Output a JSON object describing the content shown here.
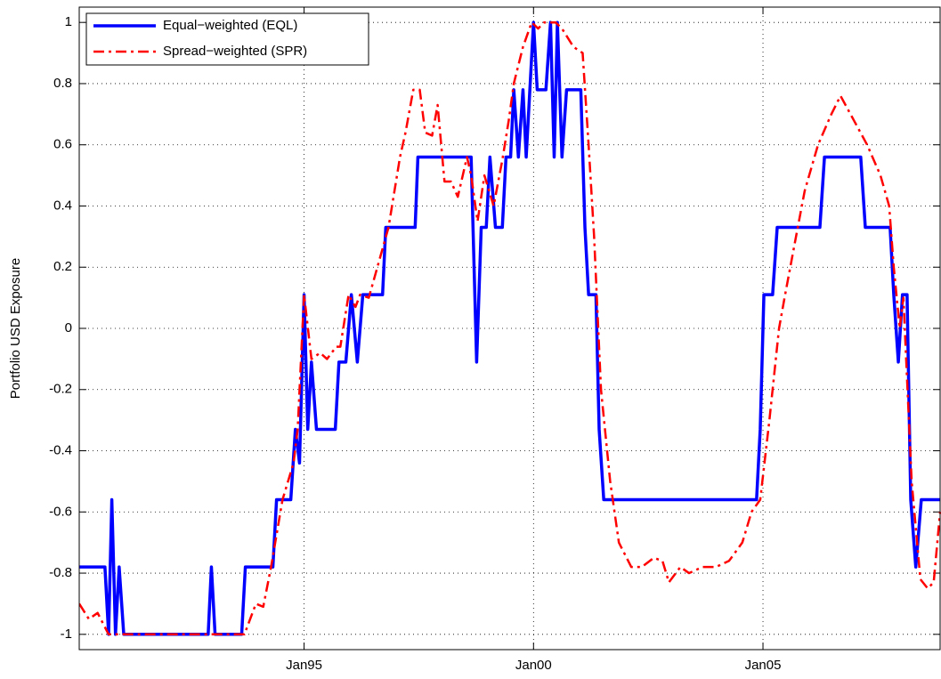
{
  "chart_data": {
    "type": "line",
    "y_label": "Portfolio USD Exposure",
    "xlim": [
      1990.1,
      2008.86
    ],
    "xticks": [
      {
        "value": 1995,
        "label": "Jan95"
      },
      {
        "value": 2000,
        "label": "Jan00"
      },
      {
        "value": 2005,
        "label": "Jan05"
      }
    ],
    "ylim": [
      -1.05,
      1.05
    ],
    "yticks": [
      -1,
      -0.8,
      -0.6,
      -0.4,
      -0.2,
      0,
      0.2,
      0.4,
      0.6,
      0.8,
      1
    ],
    "grid": true,
    "legend": "northwest",
    "series": [
      {
        "name": "Equal−weighted (EQL)",
        "color": "#0000ff",
        "style": "solid",
        "x": [
          1990.1,
          1990.66,
          1990.74,
          1990.81,
          1990.89,
          1990.97,
          1991.07,
          1992.91,
          1992.98,
          1993.06,
          1993.64,
          1993.72,
          1994.32,
          1994.4,
          1994.71,
          1994.81,
          1994.9,
          1995.0,
          1995.08,
          1995.16,
          1995.27,
          1995.68,
          1995.76,
          1995.91,
          1996.03,
          1996.16,
          1996.28,
          1996.71,
          1996.78,
          1997.42,
          1997.48,
          1998.64,
          1998.76,
          1998.86,
          1998.97,
          1999.05,
          1999.17,
          1999.32,
          1999.4,
          1999.5,
          1999.57,
          1999.67,
          1999.77,
          1999.84,
          2000.0,
          2000.08,
          2000.27,
          2000.37,
          2000.45,
          2000.52,
          2000.62,
          2000.72,
          2001.03,
          2001.12,
          2001.2,
          2001.36,
          2001.43,
          2001.53,
          2004.86,
          2004.94,
          2005.02,
          2005.21,
          2005.31,
          2006.24,
          2006.34,
          2007.13,
          2007.23,
          2007.77,
          2007.85,
          2007.95,
          2008.04,
          2008.14,
          2008.22,
          2008.33,
          2008.45,
          2008.86
        ],
        "values": [
          -0.78,
          -0.78,
          -1,
          -0.56,
          -1,
          -0.78,
          -1,
          -1,
          -0.78,
          -1,
          -1,
          -0.78,
          -0.78,
          -0.56,
          -0.56,
          -0.33,
          -0.44,
          0.11,
          -0.33,
          -0.11,
          -0.33,
          -0.33,
          -0.11,
          -0.11,
          0.11,
          -0.11,
          0.11,
          0.11,
          0.33,
          0.33,
          0.56,
          0.56,
          -0.11,
          0.33,
          0.33,
          0.56,
          0.33,
          0.33,
          0.56,
          0.56,
          0.78,
          0.56,
          0.78,
          0.56,
          1,
          0.78,
          0.78,
          1,
          0.56,
          1,
          0.56,
          0.78,
          0.78,
          0.33,
          0.11,
          0.11,
          -0.33,
          -0.56,
          -0.56,
          -0.33,
          0.11,
          0.11,
          0.33,
          0.33,
          0.56,
          0.56,
          0.33,
          0.33,
          0.11,
          -0.11,
          0.11,
          0.11,
          -0.56,
          -0.78,
          -0.56,
          -0.56
        ]
      },
      {
        "name": "Spread−weighted (SPR)",
        "color": "#ff0000",
        "style": "dashdot",
        "x": [
          1990.1,
          1990.31,
          1990.5,
          1990.74,
          1993.7,
          1993.95,
          1994.11,
          1994.28,
          1994.53,
          1994.77,
          1994.86,
          1995.0,
          1995.16,
          1995.35,
          1995.5,
          1995.7,
          1995.79,
          1995.97,
          1996.12,
          1996.22,
          1996.41,
          1996.84,
          1997.09,
          1997.21,
          1997.38,
          1997.52,
          1997.64,
          1997.79,
          1997.91,
          1998.06,
          1998.2,
          1998.35,
          1998.55,
          1998.64,
          1998.78,
          1998.93,
          1999.13,
          1999.32,
          1999.46,
          1999.57,
          1999.77,
          1999.96,
          2000.1,
          2000.23,
          2000.48,
          2000.62,
          2000.87,
          2001.07,
          2001.2,
          2001.32,
          2001.47,
          2001.67,
          2001.86,
          2002.13,
          2002.36,
          2002.62,
          2002.81,
          2002.95,
          2003.2,
          2003.39,
          2003.68,
          2003.97,
          2004.26,
          2004.55,
          2004.75,
          2004.94,
          2005.14,
          2005.35,
          2005.47,
          2005.72,
          2005.91,
          2006.2,
          2006.49,
          2006.69,
          2006.98,
          2007.27,
          2007.56,
          2007.75,
          2007.85,
          2007.98,
          2008.06,
          2008.24,
          2008.43,
          2008.59,
          2008.72,
          2008.86
        ],
        "values": [
          -0.9,
          -0.95,
          -0.93,
          -1,
          -1,
          -0.9,
          -0.91,
          -0.78,
          -0.56,
          -0.44,
          -0.33,
          0.11,
          -0.1,
          -0.08,
          -0.1,
          -0.06,
          -0.06,
          0.11,
          0.07,
          0.11,
          0.1,
          0.33,
          0.56,
          0.64,
          0.78,
          0.78,
          0.64,
          0.63,
          0.73,
          0.48,
          0.48,
          0.43,
          0.56,
          0.5,
          0.35,
          0.5,
          0.4,
          0.55,
          0.68,
          0.8,
          0.92,
          1,
          0.98,
          1,
          1,
          0.98,
          0.92,
          0.9,
          0.6,
          0.3,
          -0.2,
          -0.5,
          -0.7,
          -0.78,
          -0.78,
          -0.75,
          -0.76,
          -0.83,
          -0.78,
          -0.8,
          -0.78,
          -0.78,
          -0.76,
          -0.7,
          -0.6,
          -0.56,
          -0.3,
          0,
          0.1,
          0.3,
          0.45,
          0.6,
          0.7,
          0.76,
          0.68,
          0.6,
          0.5,
          0.4,
          0.2,
          0,
          0.1,
          -0.5,
          -0.82,
          -0.85,
          -0.83,
          -0.6
        ]
      }
    ]
  }
}
